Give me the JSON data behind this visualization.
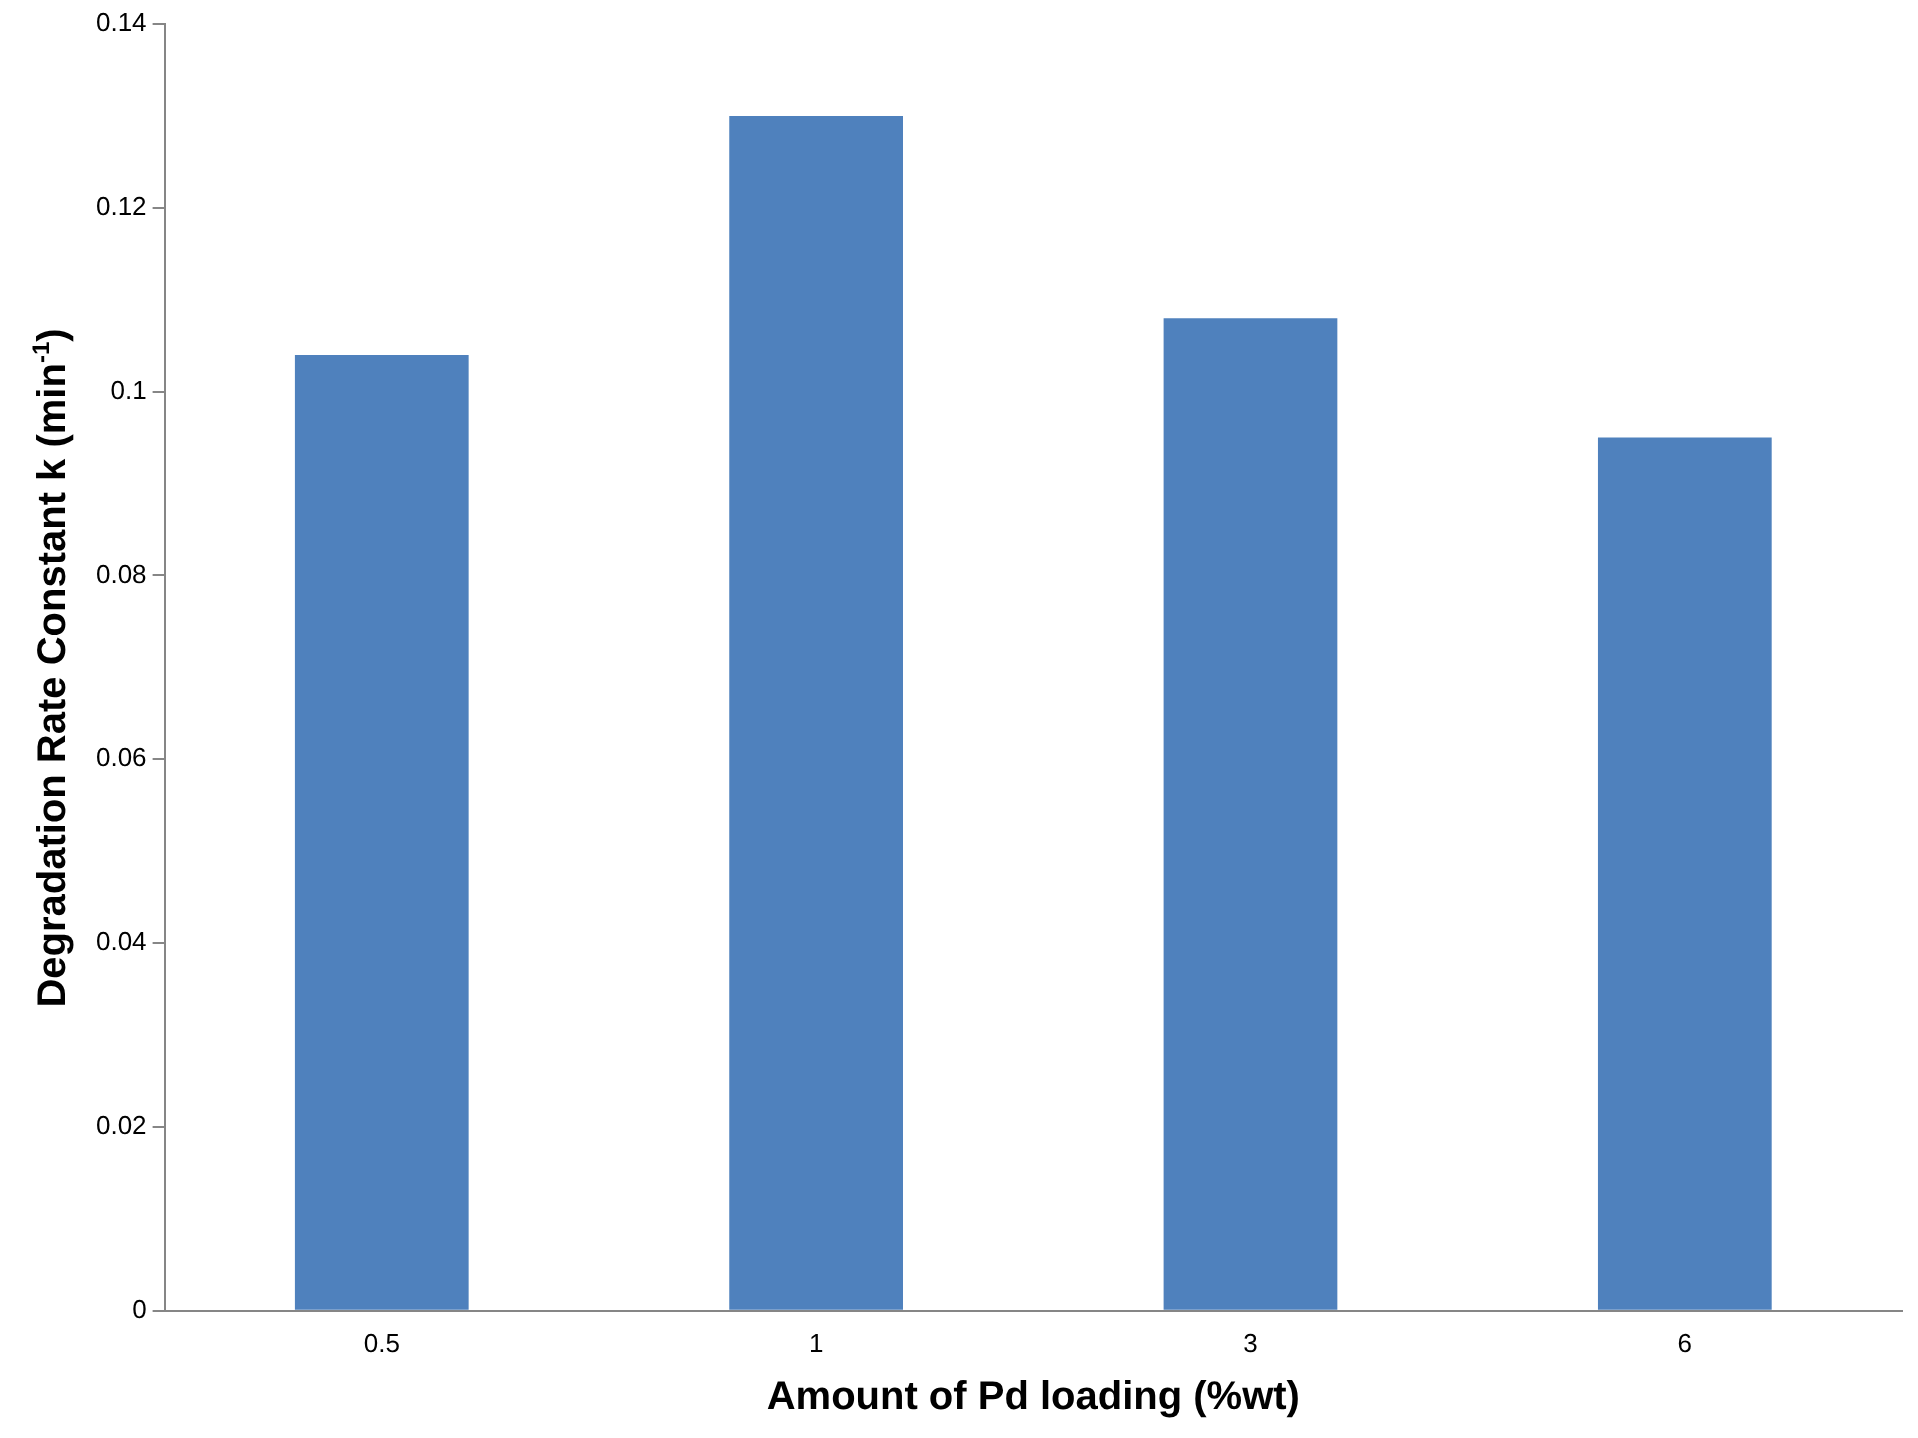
{
  "chart_data": {
    "type": "bar",
    "xlabel": "Amount of Pd loading (%wt)",
    "ylabel": "Degradation Rate Constant k (min$^{-1}$)",
    "categories": [
      "0.5",
      "1",
      "3",
      "6"
    ],
    "values": [
      0.104,
      0.13,
      0.108,
      0.095
    ],
    "color": "#4f81bd",
    "ylim": [
      0,
      0.14
    ],
    "yticks": [
      0,
      0.02,
      0.04,
      0.06,
      0.08,
      0.1,
      0.12,
      0.14
    ],
    "grid": false,
    "legend": false
  }
}
